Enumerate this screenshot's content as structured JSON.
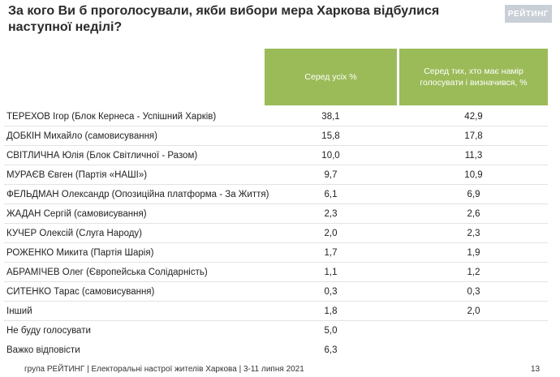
{
  "title": "За кого Ви б проголосували, якби вибори мера Харкова відбулися наступної неділі?",
  "logo": "РЕЙТИНГ",
  "columns": [
    "Серед усіх %",
    "Серед тих, хто має намір голосувати і визначився, %"
  ],
  "rows": [
    {
      "name": "ТЕРЕХОВ Ігор (Блок Кернеса - Успішний Харків)",
      "v1": "38,1",
      "v2": "42,9"
    },
    {
      "name": "ДОБКІН Михайло (самовисування)",
      "v1": "15,8",
      "v2": "17,8"
    },
    {
      "name": "СВІТЛИЧНА Юлія (Блок Світличної - Разом)",
      "v1": "10,0",
      "v2": "11,3"
    },
    {
      "name": "МУРАЄВ Євген (Партія «НАШІ»)",
      "v1": "9,7",
      "v2": "10,9"
    },
    {
      "name": "ФЕЛЬДМАН Олександр (Опозиційна платформа - За Життя)",
      "v1": "6,1",
      "v2": "6,9"
    },
    {
      "name": "ЖАДАН Сергій (самовисування)",
      "v1": "2,3",
      "v2": "2,6"
    },
    {
      "name": "КУЧЕР Олексій (Слуга Народу)",
      "v1": "2,0",
      "v2": "2,3"
    },
    {
      "name": "РОЖЕНКО Микита (Партія Шарія)",
      "v1": "1,7",
      "v2": "1,9"
    },
    {
      "name": "АБРАМІЧЕВ Олег (Європейська Солідарність)",
      "v1": "1,1",
      "v2": "1,2"
    },
    {
      "name": "СИТЕНКО Тарас (самовисування)",
      "v1": "0,3",
      "v2": "0,3"
    },
    {
      "name": "Інший",
      "v1": "1,8",
      "v2": "2,0"
    },
    {
      "name": "Не буду голосувати",
      "v1": "5,0",
      "v2": ""
    },
    {
      "name": "Важко відповісти",
      "v1": "6,3",
      "v2": ""
    }
  ],
  "footer": "група РЕЙТИНГ  | Електоральні настрої жителів Харкова | 3-11 липня 2021",
  "page_number": "13",
  "chart_data": {
    "type": "table",
    "title": "За кого Ви б проголосували, якби вибори мера Харкова відбулися наступної неділі?",
    "columns": [
      "Серед усіх %",
      "Серед тих, хто має намір голосувати і визначився, %"
    ],
    "categories": [
      "ТЕРЕХОВ Ігор (Блок Кернеса - Успішний Харків)",
      "ДОБКІН Михайло (самовисування)",
      "СВІТЛИЧНА Юлія (Блок Світличної - Разом)",
      "МУРАЄВ Євген (Партія «НАШІ»)",
      "ФЕЛЬДМАН Олександр (Опозиційна платформа - За Життя)",
      "ЖАДАН Сергій (самовисування)",
      "КУЧЕР Олексій (Слуга Народу)",
      "РОЖЕНКО Микита (Партія Шарія)",
      "АБРАМІЧЕВ Олег (Європейська Солідарність)",
      "СИТЕНКО Тарас (самовисування)",
      "Інший",
      "Не буду голосувати",
      "Важко відповісти"
    ],
    "series": [
      {
        "name": "Серед усіх %",
        "values": [
          38.1,
          15.8,
          10.0,
          9.7,
          6.1,
          2.3,
          2.0,
          1.7,
          1.1,
          0.3,
          1.8,
          5.0,
          6.3
        ]
      },
      {
        "name": "Серед тих, хто має намір голосувати і визначився, %",
        "values": [
          42.9,
          17.8,
          11.3,
          10.9,
          6.9,
          2.6,
          2.3,
          1.9,
          1.2,
          0.3,
          2.0,
          null,
          null
        ]
      }
    ],
    "header_color": "#9bbb59"
  }
}
